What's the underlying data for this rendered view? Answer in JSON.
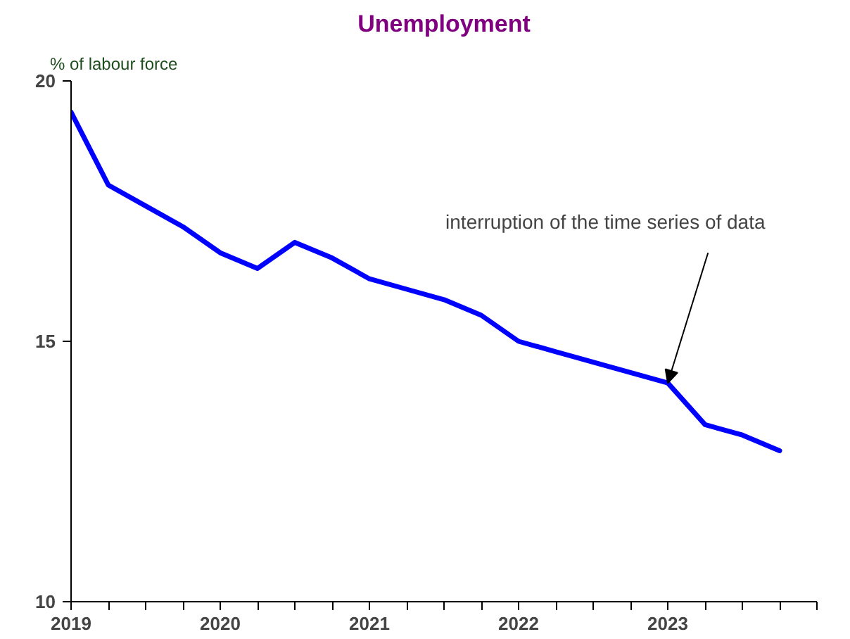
{
  "chart_data": {
    "type": "line",
    "title": "Unemployment",
    "ylabel": "% of labour force",
    "x": [
      2019.0,
      2019.25,
      2019.5,
      2019.75,
      2020.0,
      2020.25,
      2020.5,
      2020.75,
      2021.0,
      2021.25,
      2021.5,
      2021.75,
      2022.0,
      2022.25,
      2022.5,
      2022.75,
      2023.0,
      2023.25,
      2023.5,
      2023.75
    ],
    "series": [
      {
        "color": "#0000ff",
        "values": [
          19.4,
          18.0,
          17.6,
          17.2,
          16.7,
          16.4,
          16.9,
          16.6,
          16.2,
          16.0,
          15.8,
          15.5,
          15.0,
          14.8,
          14.6,
          14.4,
          14.2,
          13.4,
          13.2,
          12.9
        ]
      }
    ],
    "xlim": [
      2019,
      2024
    ],
    "xticks": [
      {
        "value": 2019,
        "label": "2019"
      },
      {
        "value": 2019.25,
        "label": null
      },
      {
        "value": 2019.5,
        "label": null
      },
      {
        "value": 2019.75,
        "label": null
      },
      {
        "value": 2020,
        "label": "2020"
      },
      {
        "value": 2020.25,
        "label": null
      },
      {
        "value": 2020.5,
        "label": null
      },
      {
        "value": 2020.75,
        "label": null
      },
      {
        "value": 2021,
        "label": "2021"
      },
      {
        "value": 2021.25,
        "label": null
      },
      {
        "value": 2021.5,
        "label": null
      },
      {
        "value": 2021.75,
        "label": null
      },
      {
        "value": 2022,
        "label": "2022"
      },
      {
        "value": 2022.25,
        "label": null
      },
      {
        "value": 2022.5,
        "label": null
      },
      {
        "value": 2022.75,
        "label": null
      },
      {
        "value": 2023,
        "label": "2023"
      },
      {
        "value": 2023.25,
        "label": null
      },
      {
        "value": 2023.5,
        "label": null
      },
      {
        "value": 2023.75,
        "label": null
      },
      {
        "value": 2024,
        "label": null
      }
    ],
    "ylim": [
      10,
      20
    ],
    "yticks": [
      10,
      15,
      20
    ],
    "grid": false,
    "line_style": "solid",
    "marker": "none",
    "annotations": [
      {
        "text": "interruption  of the time series of data",
        "x": 2023,
        "y": 14.2
      }
    ]
  }
}
